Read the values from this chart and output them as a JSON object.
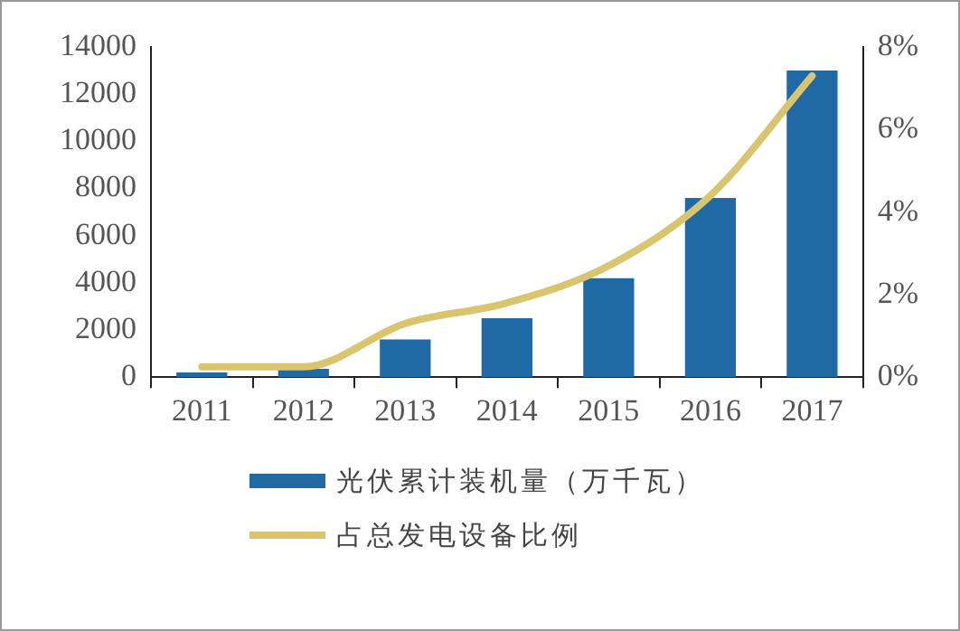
{
  "chart_data": {
    "type": "bar",
    "categories": [
      "2011",
      "2012",
      "2013",
      "2014",
      "2015",
      "2016",
      "2017"
    ],
    "series": [
      {
        "name": "光伏累计装机量（万千瓦）",
        "color": "#1f6aa5",
        "values": [
          200,
          350,
          1600,
          2500,
          4200,
          7600,
          13000
        ]
      },
      {
        "name": "占总发电设备比例",
        "type": "line",
        "axis": "y2",
        "color": "#d9c56e",
        "values": [
          0.25,
          0.25,
          1.3,
          1.8,
          2.7,
          4.4,
          7.3
        ]
      }
    ],
    "ylim": [
      0,
      14000
    ],
    "yticks": [
      0,
      2000,
      4000,
      6000,
      8000,
      10000,
      12000,
      14000
    ],
    "y2lim": [
      0,
      8
    ],
    "y2ticks": [
      {
        "value": 0,
        "label": "0%"
      },
      {
        "value": 2,
        "label": "2%"
      },
      {
        "value": 4,
        "label": "4%"
      },
      {
        "value": 6,
        "label": "6%"
      },
      {
        "value": 8,
        "label": "8%"
      }
    ],
    "grid": false,
    "legend": "bottom",
    "marker": "none"
  }
}
